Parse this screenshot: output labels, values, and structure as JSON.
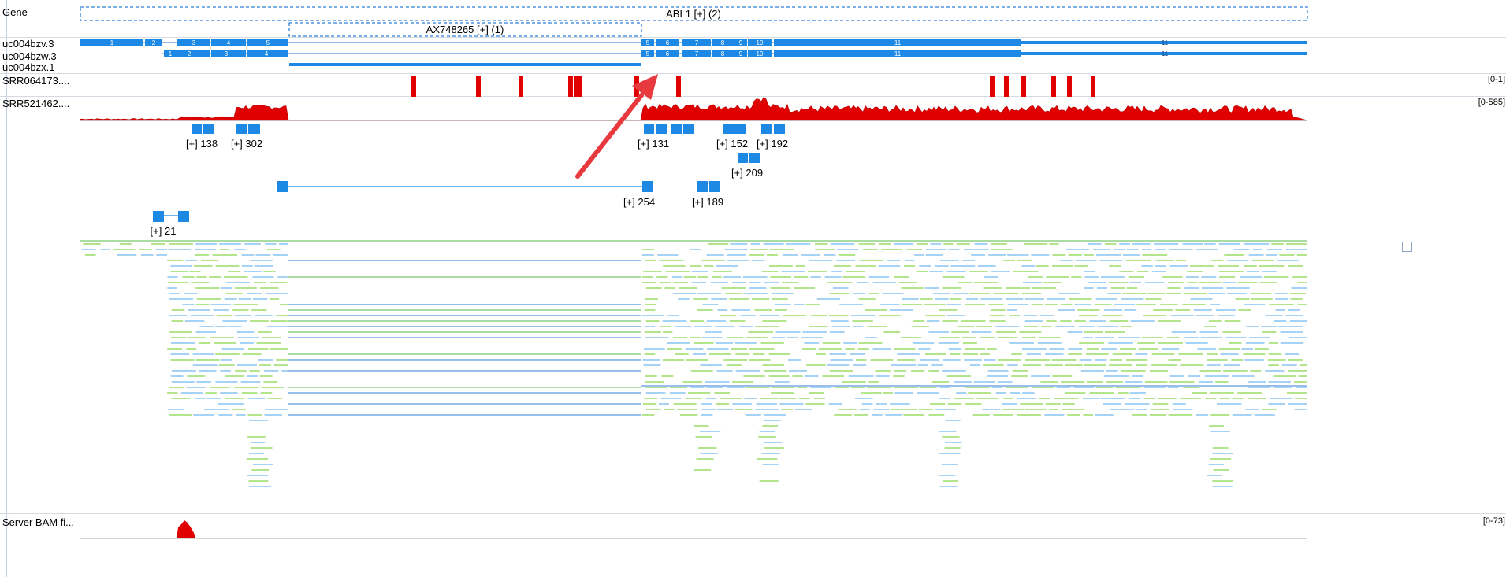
{
  "tracks": {
    "gene_label": "Gene",
    "transcripts": [
      "uc004bzv.3",
      "uc004bzw.3",
      "uc004bzx.1"
    ],
    "srr064": {
      "label": "SRR064173....",
      "range": "[0-1]"
    },
    "srr521": {
      "label": "SRR521462....",
      "range": "[0-585]"
    },
    "server_bam": {
      "label": "Server BAM fi...",
      "range": "[0-73]"
    }
  },
  "gene": {
    "name": "ABL1 [+] (2)",
    "sub": "AX748265 [+] (1)"
  },
  "exon_labels": {
    "row1": [
      "1",
      "2",
      "3",
      "4",
      "5",
      "6",
      "7",
      "8",
      "9",
      "10",
      "11",
      "11"
    ],
    "row2": [
      "1",
      "2",
      "3",
      "4",
      "5",
      "6",
      "7",
      "8",
      "9",
      "10",
      "11",
      "11"
    ]
  },
  "junctions": [
    "[+] 138",
    "[+] 302",
    "[+] 131",
    "[+] 152",
    "[+] 192",
    "[+] 209",
    "[+] 254",
    "[+] 189",
    "[+] 21"
  ],
  "controls": {
    "expand": "+"
  },
  "colors": {
    "feature": "#1e88e5",
    "coverage": "#e00000",
    "read_forward": "#a6d2f5",
    "read_reverse": "#b4e58c",
    "splice_line_blue": "#2f7fd6",
    "splice_line_green": "#54b848",
    "arrow": "#e8393f"
  }
}
